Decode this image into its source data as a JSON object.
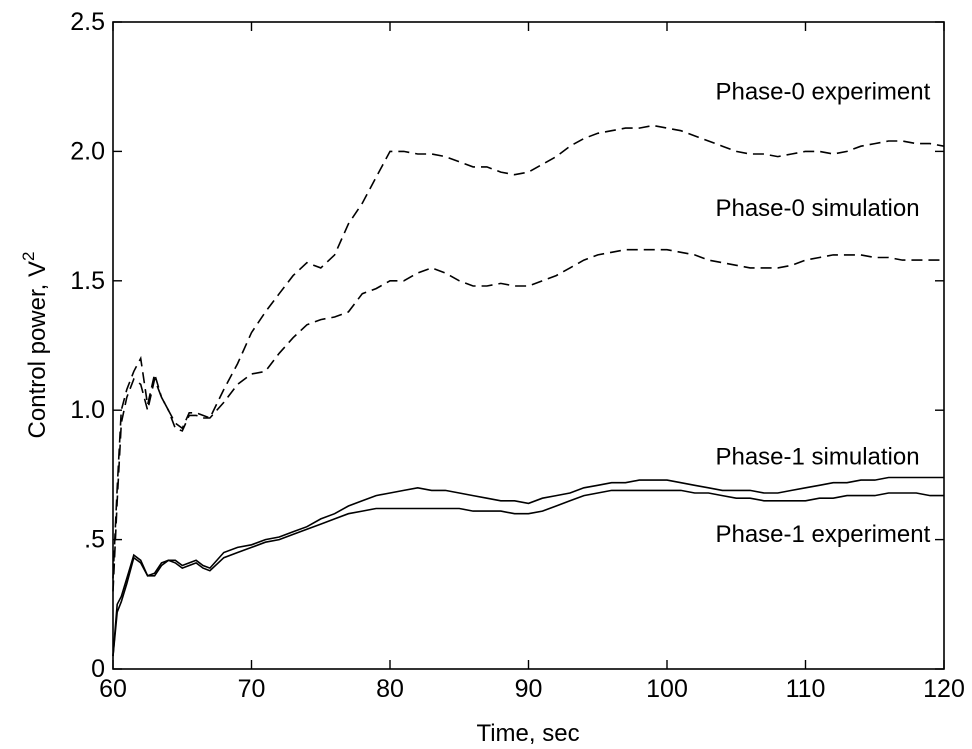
{
  "chart_data": {
    "type": "line",
    "xlabel": "Time, sec",
    "ylabel": "Control power, V",
    "ylabel_superscript": "2",
    "xlim": [
      60,
      120
    ],
    "ylim": [
      0,
      2.5
    ],
    "x_ticks": [
      60,
      70,
      80,
      90,
      100,
      110,
      120
    ],
    "x_tick_labels": [
      "60",
      "70",
      "80",
      "90",
      "100",
      "110",
      "120"
    ],
    "y_ticks": [
      0,
      0.5,
      1.0,
      1.5,
      2.0,
      2.5
    ],
    "y_tick_labels": [
      "0",
      ".5",
      "1.0",
      "1.5",
      "2.0",
      "2.5"
    ],
    "grid": false,
    "legend": "none",
    "annotations": [
      {
        "text": "Phase-0 experiment",
        "x": 103.5,
        "y": 2.2
      },
      {
        "text": "Phase-0 simulation",
        "x": 103.5,
        "y": 1.75
      },
      {
        "text": "Phase-1 simulation",
        "x": 103.5,
        "y": 0.79
      },
      {
        "text": "Phase-1 experiment",
        "x": 103.5,
        "y": 0.49
      }
    ],
    "series": [
      {
        "style": "dashed",
        "x": [
          60,
          60.3,
          60.6,
          61,
          61.5,
          62,
          62.5,
          63,
          63.5,
          64,
          64.5,
          65,
          65.5,
          66,
          66.5,
          67,
          68,
          69,
          70,
          71,
          72,
          73,
          74,
          75,
          76,
          77,
          78,
          79,
          80,
          81,
          82,
          83,
          84,
          85,
          86,
          87,
          88,
          89,
          90,
          91,
          92,
          93,
          94,
          95,
          96,
          97,
          98,
          99,
          100,
          101,
          102,
          103,
          104,
          105,
          106,
          107,
          108,
          109,
          110,
          111,
          112,
          113,
          114,
          115,
          116,
          117,
          118,
          119,
          120
        ],
        "y": [
          0.35,
          0.7,
          1.0,
          1.08,
          1.15,
          1.2,
          1.02,
          1.14,
          1.05,
          1.0,
          0.95,
          0.93,
          0.99,
          0.99,
          0.98,
          0.97,
          1.08,
          1.18,
          1.3,
          1.38,
          1.45,
          1.52,
          1.57,
          1.55,
          1.6,
          1.72,
          1.8,
          1.9,
          2.0,
          2.0,
          1.99,
          1.99,
          1.98,
          1.96,
          1.94,
          1.94,
          1.92,
          1.91,
          1.92,
          1.95,
          1.98,
          2.02,
          2.05,
          2.07,
          2.08,
          2.09,
          2.09,
          2.1,
          2.09,
          2.08,
          2.06,
          2.04,
          2.02,
          2.0,
          1.99,
          1.99,
          1.98,
          1.99,
          2.0,
          2.0,
          1.99,
          2.0,
          2.02,
          2.03,
          2.04,
          2.04,
          2.03,
          2.03,
          2.02
        ]
      },
      {
        "style": "dashed",
        "x": [
          60,
          60.3,
          60.6,
          61,
          61.5,
          62,
          62.5,
          63,
          63.5,
          64,
          64.5,
          65,
          65.5,
          66,
          66.5,
          67,
          68,
          69,
          70,
          71,
          72,
          73,
          74,
          75,
          76,
          77,
          78,
          79,
          80,
          81,
          82,
          83,
          84,
          85,
          86,
          87,
          88,
          89,
          90,
          91,
          92,
          93,
          94,
          95,
          96,
          97,
          98,
          99,
          100,
          101,
          102,
          103,
          104,
          105,
          106,
          107,
          108,
          109,
          110,
          111,
          112,
          113,
          114,
          115,
          116,
          117,
          118,
          119,
          120
        ],
        "y": [
          0.3,
          0.65,
          0.95,
          1.05,
          1.12,
          1.1,
          1.0,
          1.12,
          1.05,
          1.0,
          0.93,
          0.92,
          0.98,
          0.98,
          0.97,
          0.97,
          1.03,
          1.1,
          1.14,
          1.15,
          1.22,
          1.28,
          1.33,
          1.35,
          1.36,
          1.38,
          1.45,
          1.47,
          1.5,
          1.5,
          1.53,
          1.55,
          1.53,
          1.5,
          1.48,
          1.48,
          1.49,
          1.48,
          1.48,
          1.5,
          1.52,
          1.55,
          1.58,
          1.6,
          1.61,
          1.62,
          1.62,
          1.62,
          1.62,
          1.61,
          1.6,
          1.58,
          1.57,
          1.56,
          1.55,
          1.55,
          1.55,
          1.56,
          1.58,
          1.59,
          1.6,
          1.6,
          1.6,
          1.59,
          1.59,
          1.58,
          1.58,
          1.58,
          1.58
        ]
      },
      {
        "style": "solid",
        "x": [
          60,
          60.3,
          60.6,
          61,
          61.5,
          62,
          62.5,
          63,
          63.5,
          64,
          64.5,
          65,
          65.5,
          66,
          66.5,
          67,
          68,
          69,
          70,
          71,
          72,
          73,
          74,
          75,
          76,
          77,
          78,
          79,
          80,
          81,
          82,
          83,
          84,
          85,
          86,
          87,
          88,
          89,
          90,
          91,
          92,
          93,
          94,
          95,
          96,
          97,
          98,
          99,
          100,
          101,
          102,
          103,
          104,
          105,
          106,
          107,
          108,
          109,
          110,
          111,
          112,
          113,
          114,
          115,
          116,
          117,
          118,
          119,
          120
        ],
        "y": [
          0.05,
          0.25,
          0.28,
          0.35,
          0.44,
          0.42,
          0.36,
          0.37,
          0.41,
          0.42,
          0.42,
          0.4,
          0.41,
          0.42,
          0.4,
          0.39,
          0.45,
          0.47,
          0.48,
          0.5,
          0.51,
          0.53,
          0.55,
          0.58,
          0.6,
          0.63,
          0.65,
          0.67,
          0.68,
          0.69,
          0.7,
          0.69,
          0.69,
          0.68,
          0.67,
          0.66,
          0.65,
          0.65,
          0.64,
          0.66,
          0.67,
          0.68,
          0.7,
          0.71,
          0.72,
          0.72,
          0.73,
          0.73,
          0.73,
          0.72,
          0.71,
          0.7,
          0.69,
          0.69,
          0.69,
          0.68,
          0.68,
          0.69,
          0.7,
          0.71,
          0.72,
          0.72,
          0.73,
          0.73,
          0.74,
          0.74,
          0.74,
          0.74,
          0.74
        ]
      },
      {
        "style": "solid",
        "x": [
          60,
          60.3,
          60.6,
          61,
          61.5,
          62,
          62.5,
          63,
          63.5,
          64,
          64.5,
          65,
          65.5,
          66,
          66.5,
          67,
          68,
          69,
          70,
          71,
          72,
          73,
          74,
          75,
          76,
          77,
          78,
          79,
          80,
          81,
          82,
          83,
          84,
          85,
          86,
          87,
          88,
          89,
          90,
          91,
          92,
          93,
          94,
          95,
          96,
          97,
          98,
          99,
          100,
          101,
          102,
          103,
          104,
          105,
          106,
          107,
          108,
          109,
          110,
          111,
          112,
          113,
          114,
          115,
          116,
          117,
          118,
          119,
          120
        ],
        "y": [
          0.05,
          0.22,
          0.26,
          0.33,
          0.43,
          0.41,
          0.36,
          0.36,
          0.4,
          0.42,
          0.41,
          0.39,
          0.4,
          0.41,
          0.39,
          0.38,
          0.43,
          0.45,
          0.47,
          0.49,
          0.5,
          0.52,
          0.54,
          0.56,
          0.58,
          0.6,
          0.61,
          0.62,
          0.62,
          0.62,
          0.62,
          0.62,
          0.62,
          0.62,
          0.61,
          0.61,
          0.61,
          0.6,
          0.6,
          0.61,
          0.63,
          0.65,
          0.67,
          0.68,
          0.69,
          0.69,
          0.69,
          0.69,
          0.69,
          0.69,
          0.68,
          0.68,
          0.67,
          0.66,
          0.66,
          0.65,
          0.65,
          0.65,
          0.65,
          0.66,
          0.66,
          0.67,
          0.67,
          0.67,
          0.68,
          0.68,
          0.68,
          0.67,
          0.67
        ]
      }
    ]
  }
}
